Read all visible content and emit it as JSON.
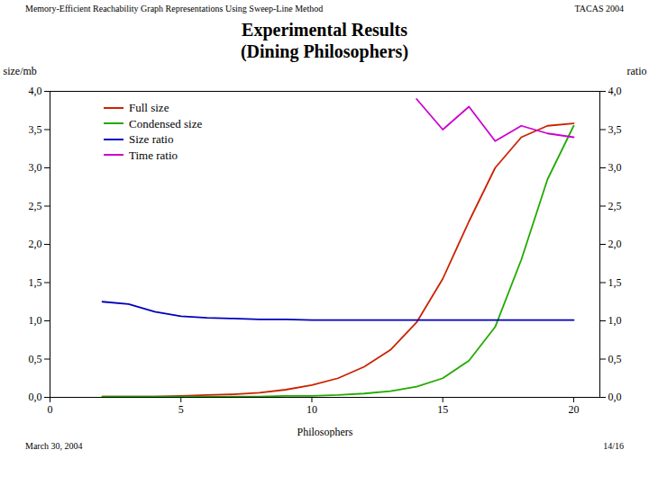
{
  "chart_data": {
    "type": "line",
    "title": "Experimental Results\n(Dining Philosophers)",
    "annotations": [
      "Memory-Efficient Reachability Graph Representations Using Sweep-Line Method",
      "TACAS 2004",
      "March 30, 2004",
      "14/16"
    ],
    "xlabel": "Philosophers",
    "ylabel": "size/mb",
    "y2label": "ratio",
    "xlim": [
      0,
      21
    ],
    "xticks": [
      0,
      5,
      10,
      15,
      20
    ],
    "ylim": [
      0.0,
      4.0
    ],
    "yticks": [
      {
        "value": 0.0,
        "label": "0,0"
      },
      {
        "value": 0.5,
        "label": "0,5"
      },
      {
        "value": 1.0,
        "label": "1,0"
      },
      {
        "value": 1.5,
        "label": "1,5"
      },
      {
        "value": 2.0,
        "label": "2,0"
      },
      {
        "value": 2.5,
        "label": "2,5"
      },
      {
        "value": 3.0,
        "label": "3,0"
      },
      {
        "value": 3.5,
        "label": "3,5"
      },
      {
        "value": 4.0,
        "label": "4,0"
      }
    ],
    "y2lim": [
      0.0,
      4.0
    ],
    "y2ticks": [
      {
        "value": 0.0,
        "label": "0,0"
      },
      {
        "value": 0.5,
        "label": "0,5"
      },
      {
        "value": 1.0,
        "label": "1,0"
      },
      {
        "value": 1.5,
        "label": "1,5"
      },
      {
        "value": 2.0,
        "label": "2,0"
      },
      {
        "value": 2.5,
        "label": "2,5"
      },
      {
        "value": 3.0,
        "label": "3,0"
      },
      {
        "value": 3.5,
        "label": "3,5"
      },
      {
        "value": 4.0,
        "label": "4,0"
      }
    ],
    "legend": "upper left",
    "series": [
      {
        "name": "Full size",
        "color": "#cc2200",
        "x": [
          2,
          3,
          4,
          5,
          6,
          7,
          8,
          9,
          10,
          11,
          12,
          13,
          14,
          15,
          16,
          17,
          18,
          19,
          20
        ],
        "values": [
          0.01,
          0.01,
          0.01,
          0.02,
          0.03,
          0.04,
          0.06,
          0.1,
          0.16,
          0.25,
          0.4,
          0.62,
          0.98,
          1.55,
          2.3,
          3.0,
          3.4,
          3.55,
          3.58
        ]
      },
      {
        "name": "Condensed size",
        "color": "#22aa00",
        "x": [
          2,
          3,
          4,
          5,
          6,
          7,
          8,
          9,
          10,
          11,
          12,
          13,
          14,
          15,
          16,
          17,
          18,
          19,
          20
        ],
        "values": [
          0.01,
          0.01,
          0.01,
          0.01,
          0.01,
          0.01,
          0.01,
          0.02,
          0.02,
          0.03,
          0.05,
          0.08,
          0.14,
          0.25,
          0.48,
          0.92,
          1.8,
          2.85,
          3.55
        ]
      },
      {
        "name": "Size ratio",
        "color": "#0000bb",
        "x": [
          2,
          3,
          4,
          5,
          6,
          7,
          8,
          9,
          10,
          11,
          12,
          13,
          14,
          15,
          16,
          17,
          18,
          19,
          20
        ],
        "values": [
          1.25,
          1.22,
          1.12,
          1.06,
          1.04,
          1.03,
          1.02,
          1.02,
          1.01,
          1.01,
          1.01,
          1.01,
          1.01,
          1.01,
          1.01,
          1.01,
          1.01,
          1.01,
          1.01
        ]
      },
      {
        "name": "Time ratio",
        "color": "#cc00cc",
        "x": [
          14,
          15,
          16,
          17,
          18,
          19,
          20
        ],
        "values": [
          3.9,
          3.5,
          3.8,
          3.35,
          3.55,
          3.45,
          3.4
        ]
      }
    ]
  }
}
